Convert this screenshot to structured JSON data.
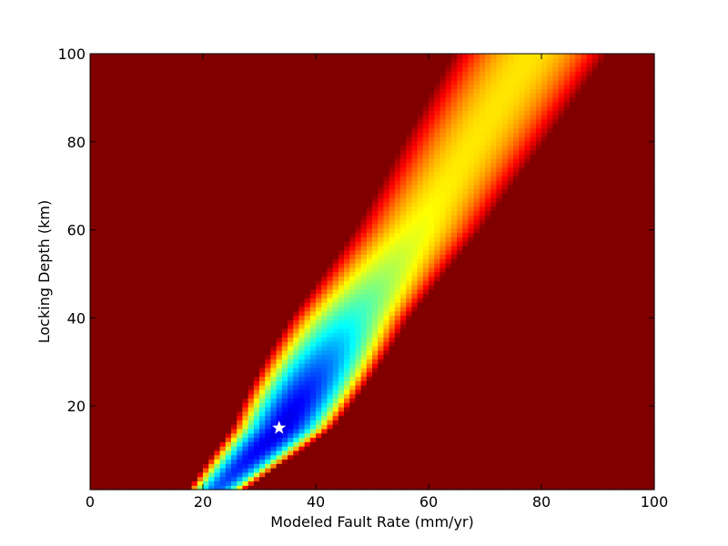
{
  "chart_data": {
    "type": "heatmap",
    "xlabel": "Modeled Fault Rate (mm/yr)",
    "ylabel": "Locking Depth (km)",
    "xlim": [
      0,
      100
    ],
    "ylim": [
      1,
      100
    ],
    "x_ticks": [
      0,
      20,
      40,
      60,
      80,
      100
    ],
    "y_ticks": [
      20,
      40,
      60,
      80,
      100
    ],
    "x_tick_labels": [
      "0",
      "20",
      "40",
      "60",
      "80",
      "100"
    ],
    "y_tick_labels": [
      "20",
      "40",
      "60",
      "80",
      "100"
    ],
    "colormap": "jet",
    "grid": false,
    "grid_resolution": [
      100,
      100
    ],
    "best_fit_marker": {
      "symbol": "star",
      "color": "#ffffff",
      "x": 33.5,
      "y": 15
    },
    "misfit_valley": {
      "description_points": [
        {
          "depth": 3,
          "center_rate": 24,
          "half_width": 6
        },
        {
          "depth": 15,
          "center_rate": 34,
          "half_width": 9
        },
        {
          "depth": 40,
          "center_rate": 46,
          "half_width": 13
        },
        {
          "depth": 60,
          "center_rate": 58,
          "half_width": 17
        },
        {
          "depth": 80,
          "center_rate": 68,
          "half_width": 20
        },
        {
          "depth": 100,
          "center_rate": 78,
          "half_width": 22
        }
      ]
    }
  }
}
